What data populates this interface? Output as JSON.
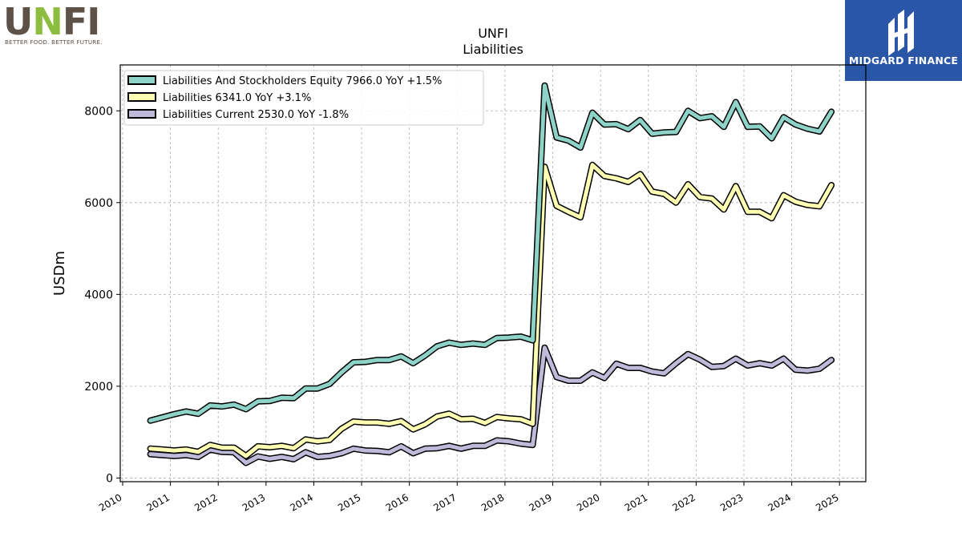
{
  "logos": {
    "left": {
      "text": "UNFI",
      "tagline": "BETTER FOOD. BETTER FUTURE."
    },
    "right": {
      "text": "MIDGARD FINANCE",
      "bg_color": "#2a56a8"
    }
  },
  "chart_data": {
    "type": "line",
    "title": "UNFI",
    "subtitle": "Liabilities",
    "ylabel": "USDm",
    "xlabel": "",
    "xlim": [
      2009.95,
      2025.55
    ],
    "ylim": [
      -80,
      9000
    ],
    "x_ticks": [
      2010,
      2011,
      2012,
      2013,
      2014,
      2015,
      2016,
      2017,
      2018,
      2019,
      2020,
      2021,
      2022,
      2023,
      2024,
      2025
    ],
    "y_ticks": [
      0,
      2000,
      4000,
      6000,
      8000
    ],
    "grid": true,
    "legend_position": "top-left",
    "x": [
      2010.58,
      2010.83,
      2011.08,
      2011.33,
      2011.58,
      2011.83,
      2012.08,
      2012.33,
      2012.58,
      2012.83,
      2013.08,
      2013.33,
      2013.58,
      2013.83,
      2014.08,
      2014.33,
      2014.58,
      2014.83,
      2015.08,
      2015.33,
      2015.58,
      2015.83,
      2016.08,
      2016.33,
      2016.58,
      2016.83,
      2017.08,
      2017.33,
      2017.58,
      2017.83,
      2018.08,
      2018.33,
      2018.58,
      2018.83,
      2019.08,
      2019.33,
      2019.58,
      2019.83,
      2020.08,
      2020.33,
      2020.58,
      2020.83,
      2021.08,
      2021.33,
      2021.58,
      2021.83,
      2022.08,
      2022.33,
      2022.58,
      2022.83,
      2023.08,
      2023.33,
      2023.58,
      2023.83,
      2024.08,
      2024.33,
      2024.58,
      2024.83
    ],
    "series": [
      {
        "name": "Liabilities And Stockholders Equity  7966.0 YoY +1.5%",
        "color": "#8dd3c7",
        "values": [
          1250,
          1320,
          1390,
          1450,
          1400,
          1580,
          1560,
          1600,
          1500,
          1670,
          1680,
          1750,
          1740,
          1950,
          1950,
          2050,
          2300,
          2520,
          2530,
          2570,
          2570,
          2650,
          2500,
          2670,
          2870,
          2950,
          2900,
          2930,
          2900,
          3050,
          3060,
          3080,
          3000,
          8550,
          7420,
          7350,
          7200,
          7960,
          7700,
          7710,
          7600,
          7800,
          7500,
          7530,
          7540,
          8000,
          7840,
          7880,
          7650,
          8190,
          7650,
          7660,
          7400,
          7860,
          7700,
          7610,
          7550,
          7980
        ]
      },
      {
        "name": "Liabilities  6341.0 YoY +3.1%",
        "color": "#ffffb3",
        "values": [
          640,
          620,
          600,
          620,
          570,
          720,
          660,
          660,
          480,
          690,
          670,
          700,
          650,
          840,
          800,
          830,
          1070,
          1230,
          1210,
          1210,
          1180,
          1240,
          1060,
          1170,
          1340,
          1400,
          1280,
          1290,
          1200,
          1330,
          1300,
          1280,
          1180,
          6780,
          5930,
          5800,
          5680,
          6820,
          6580,
          6530,
          6450,
          6620,
          6240,
          6190,
          6000,
          6400,
          6120,
          6090,
          5850,
          6360,
          5800,
          5800,
          5660,
          6160,
          6020,
          5950,
          5920,
          6380
        ]
      },
      {
        "name": "Liabilities Current  2530.0 YoY -1.8%",
        "color": "#bebada",
        "values": [
          520,
          500,
          480,
          500,
          460,
          620,
          570,
          560,
          330,
          470,
          420,
          460,
          410,
          560,
          460,
          480,
          540,
          640,
          600,
          590,
          560,
          690,
          540,
          640,
          650,
          700,
          640,
          700,
          700,
          820,
          800,
          750,
          720,
          2840,
          2200,
          2120,
          2120,
          2300,
          2180,
          2490,
          2400,
          2400,
          2320,
          2280,
          2500,
          2700,
          2580,
          2420,
          2440,
          2600,
          2450,
          2500,
          2450,
          2600,
          2360,
          2340,
          2380,
          2570
        ]
      }
    ]
  }
}
